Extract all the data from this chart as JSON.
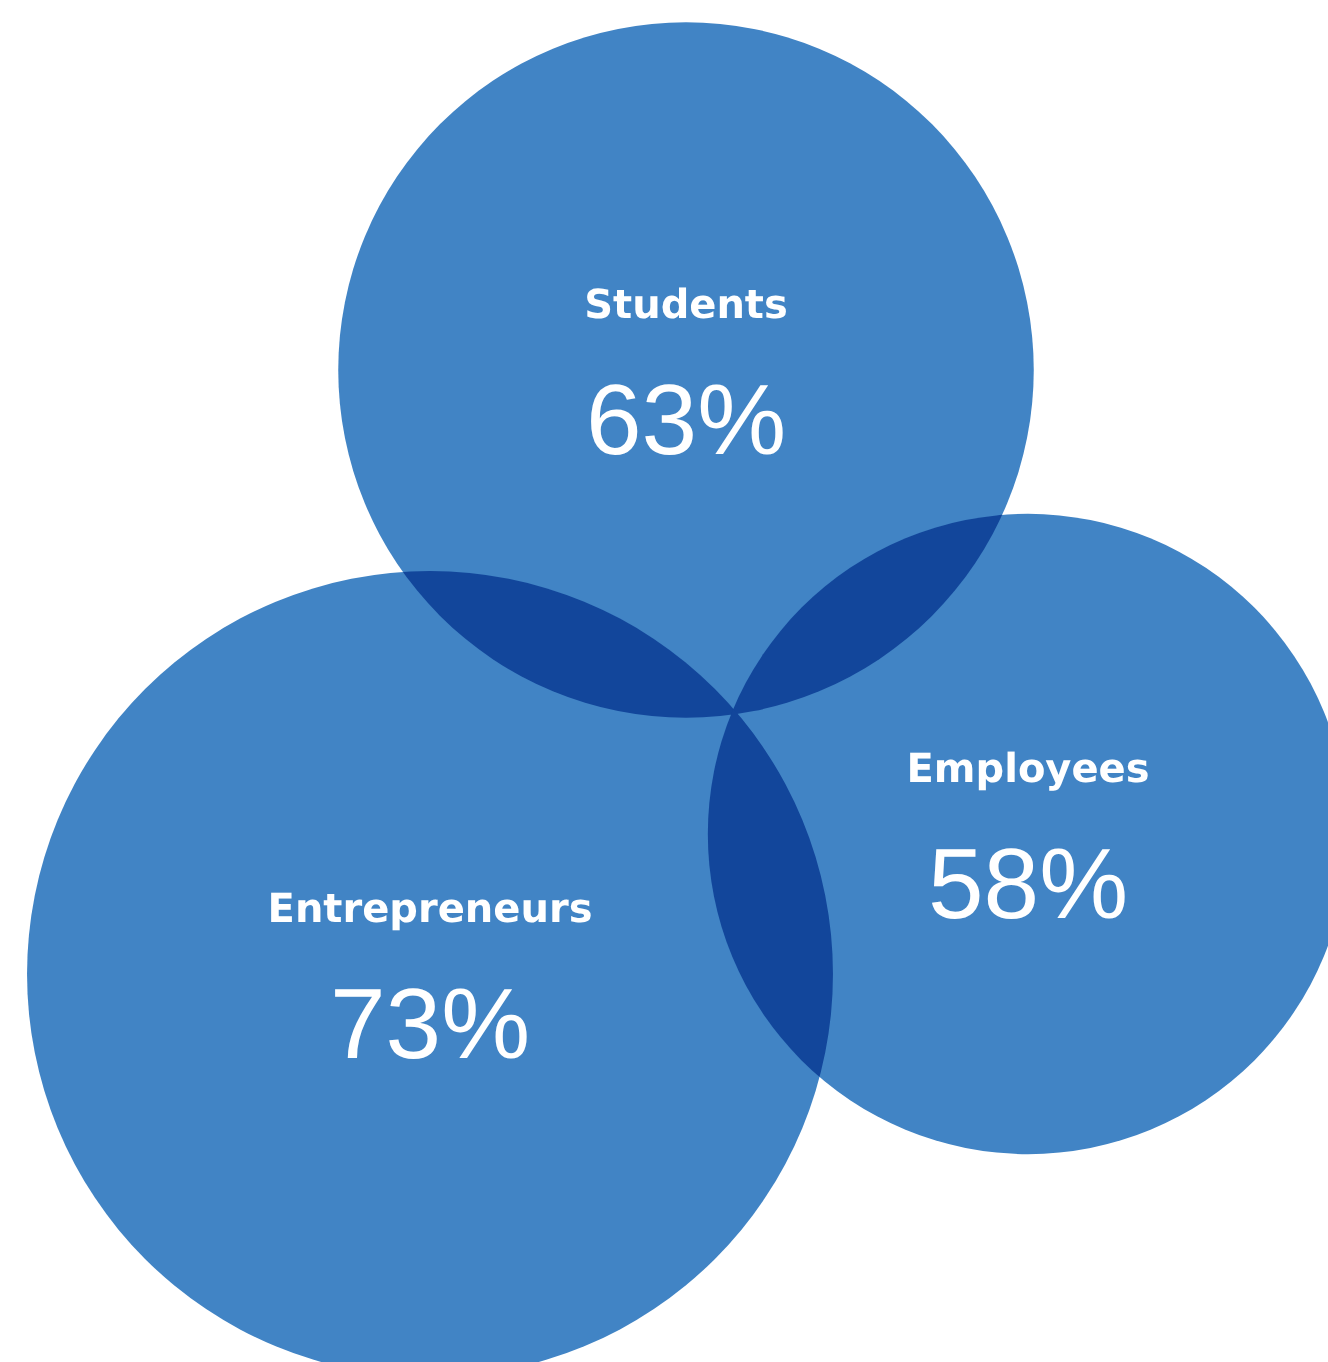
{
  "chart_data": {
    "type": "other",
    "categories": [
      "Students",
      "Entrepreneurs",
      "Employees"
    ],
    "values": [
      63,
      73,
      58
    ],
    "value_labels": [
      "63%",
      "73%",
      "58%"
    ],
    "colors": [
      "#4184c5",
      "#4184c5",
      "#4184c5"
    ]
  }
}
